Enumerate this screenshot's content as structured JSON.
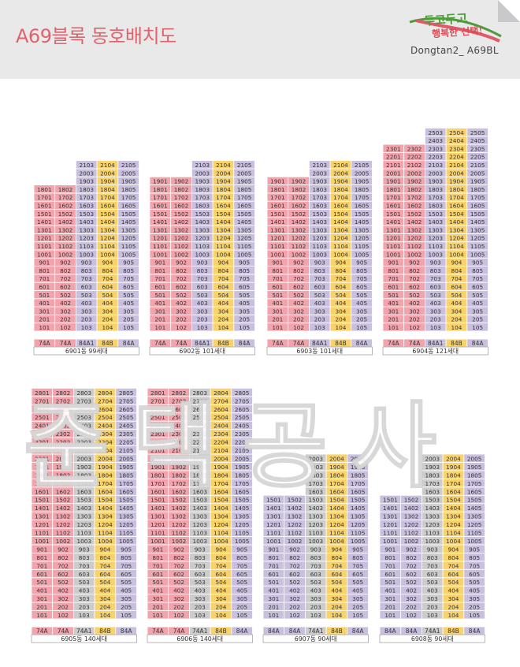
{
  "header": {
    "title": "A69블록 동호배치도",
    "logo_line1": "두고두고",
    "logo_line2": "행복한 선택!",
    "subtitle": "Dongtan2_ A69BL"
  },
  "colors": {
    "74A": "#f2a3ac",
    "84A1": "#c9bfdf",
    "84B": "#f9d36a",
    "84A": "#c9bfdf",
    "grid": "#ffffff",
    "text": "#333333"
  },
  "buildings": [
    {
      "caption": "6901동 99세대",
      "types": [
        "74A",
        "74A",
        "84A1",
        "84B",
        "84A"
      ],
      "tops": [
        18,
        18,
        21,
        21,
        21
      ],
      "bottom": 1
    },
    {
      "caption": "6902동 101세대",
      "types": [
        "74A",
        "74A",
        "84A1",
        "84B",
        "84A"
      ],
      "tops": [
        19,
        19,
        21,
        21,
        21
      ],
      "bottom": 1
    },
    {
      "caption": "6903동 101세대",
      "types": [
        "74A",
        "74A",
        "84A1",
        "84B",
        "84A"
      ],
      "tops": [
        19,
        19,
        21,
        21,
        21
      ],
      "bottom": 1
    },
    {
      "caption": "6904동 121세대",
      "types": [
        "74A",
        "74A",
        "84A1",
        "84B",
        "84A"
      ],
      "tops": [
        23,
        23,
        25,
        25,
        25
      ],
      "bottom": 1
    },
    {
      "caption": "6905동 140세대",
      "types": [
        "74A",
        "74A",
        "74A1",
        "84B",
        "84A"
      ],
      "tops": [
        28,
        28,
        28,
        28,
        28
      ],
      "bottom": 1
    },
    {
      "caption": "6906동 140세대",
      "types": [
        "74A",
        "74A",
        "74A1",
        "84B",
        "84A"
      ],
      "tops": [
        28,
        28,
        28,
        28,
        28
      ],
      "bottom": 1
    },
    {
      "caption": "6907동 90세대",
      "types": [
        "84A",
        "84A",
        "74A1",
        "84B",
        "84A"
      ],
      "tops": [
        15,
        15,
        20,
        20,
        20
      ],
      "bottom": 1
    },
    {
      "caption": "6908동 90세대",
      "types": [
        "84A",
        "84A",
        "74A1",
        "84B",
        "84A"
      ],
      "tops": [
        15,
        15,
        20,
        20,
        20
      ],
      "bottom": 1
    }
  ],
  "watermark": "준택공사"
}
